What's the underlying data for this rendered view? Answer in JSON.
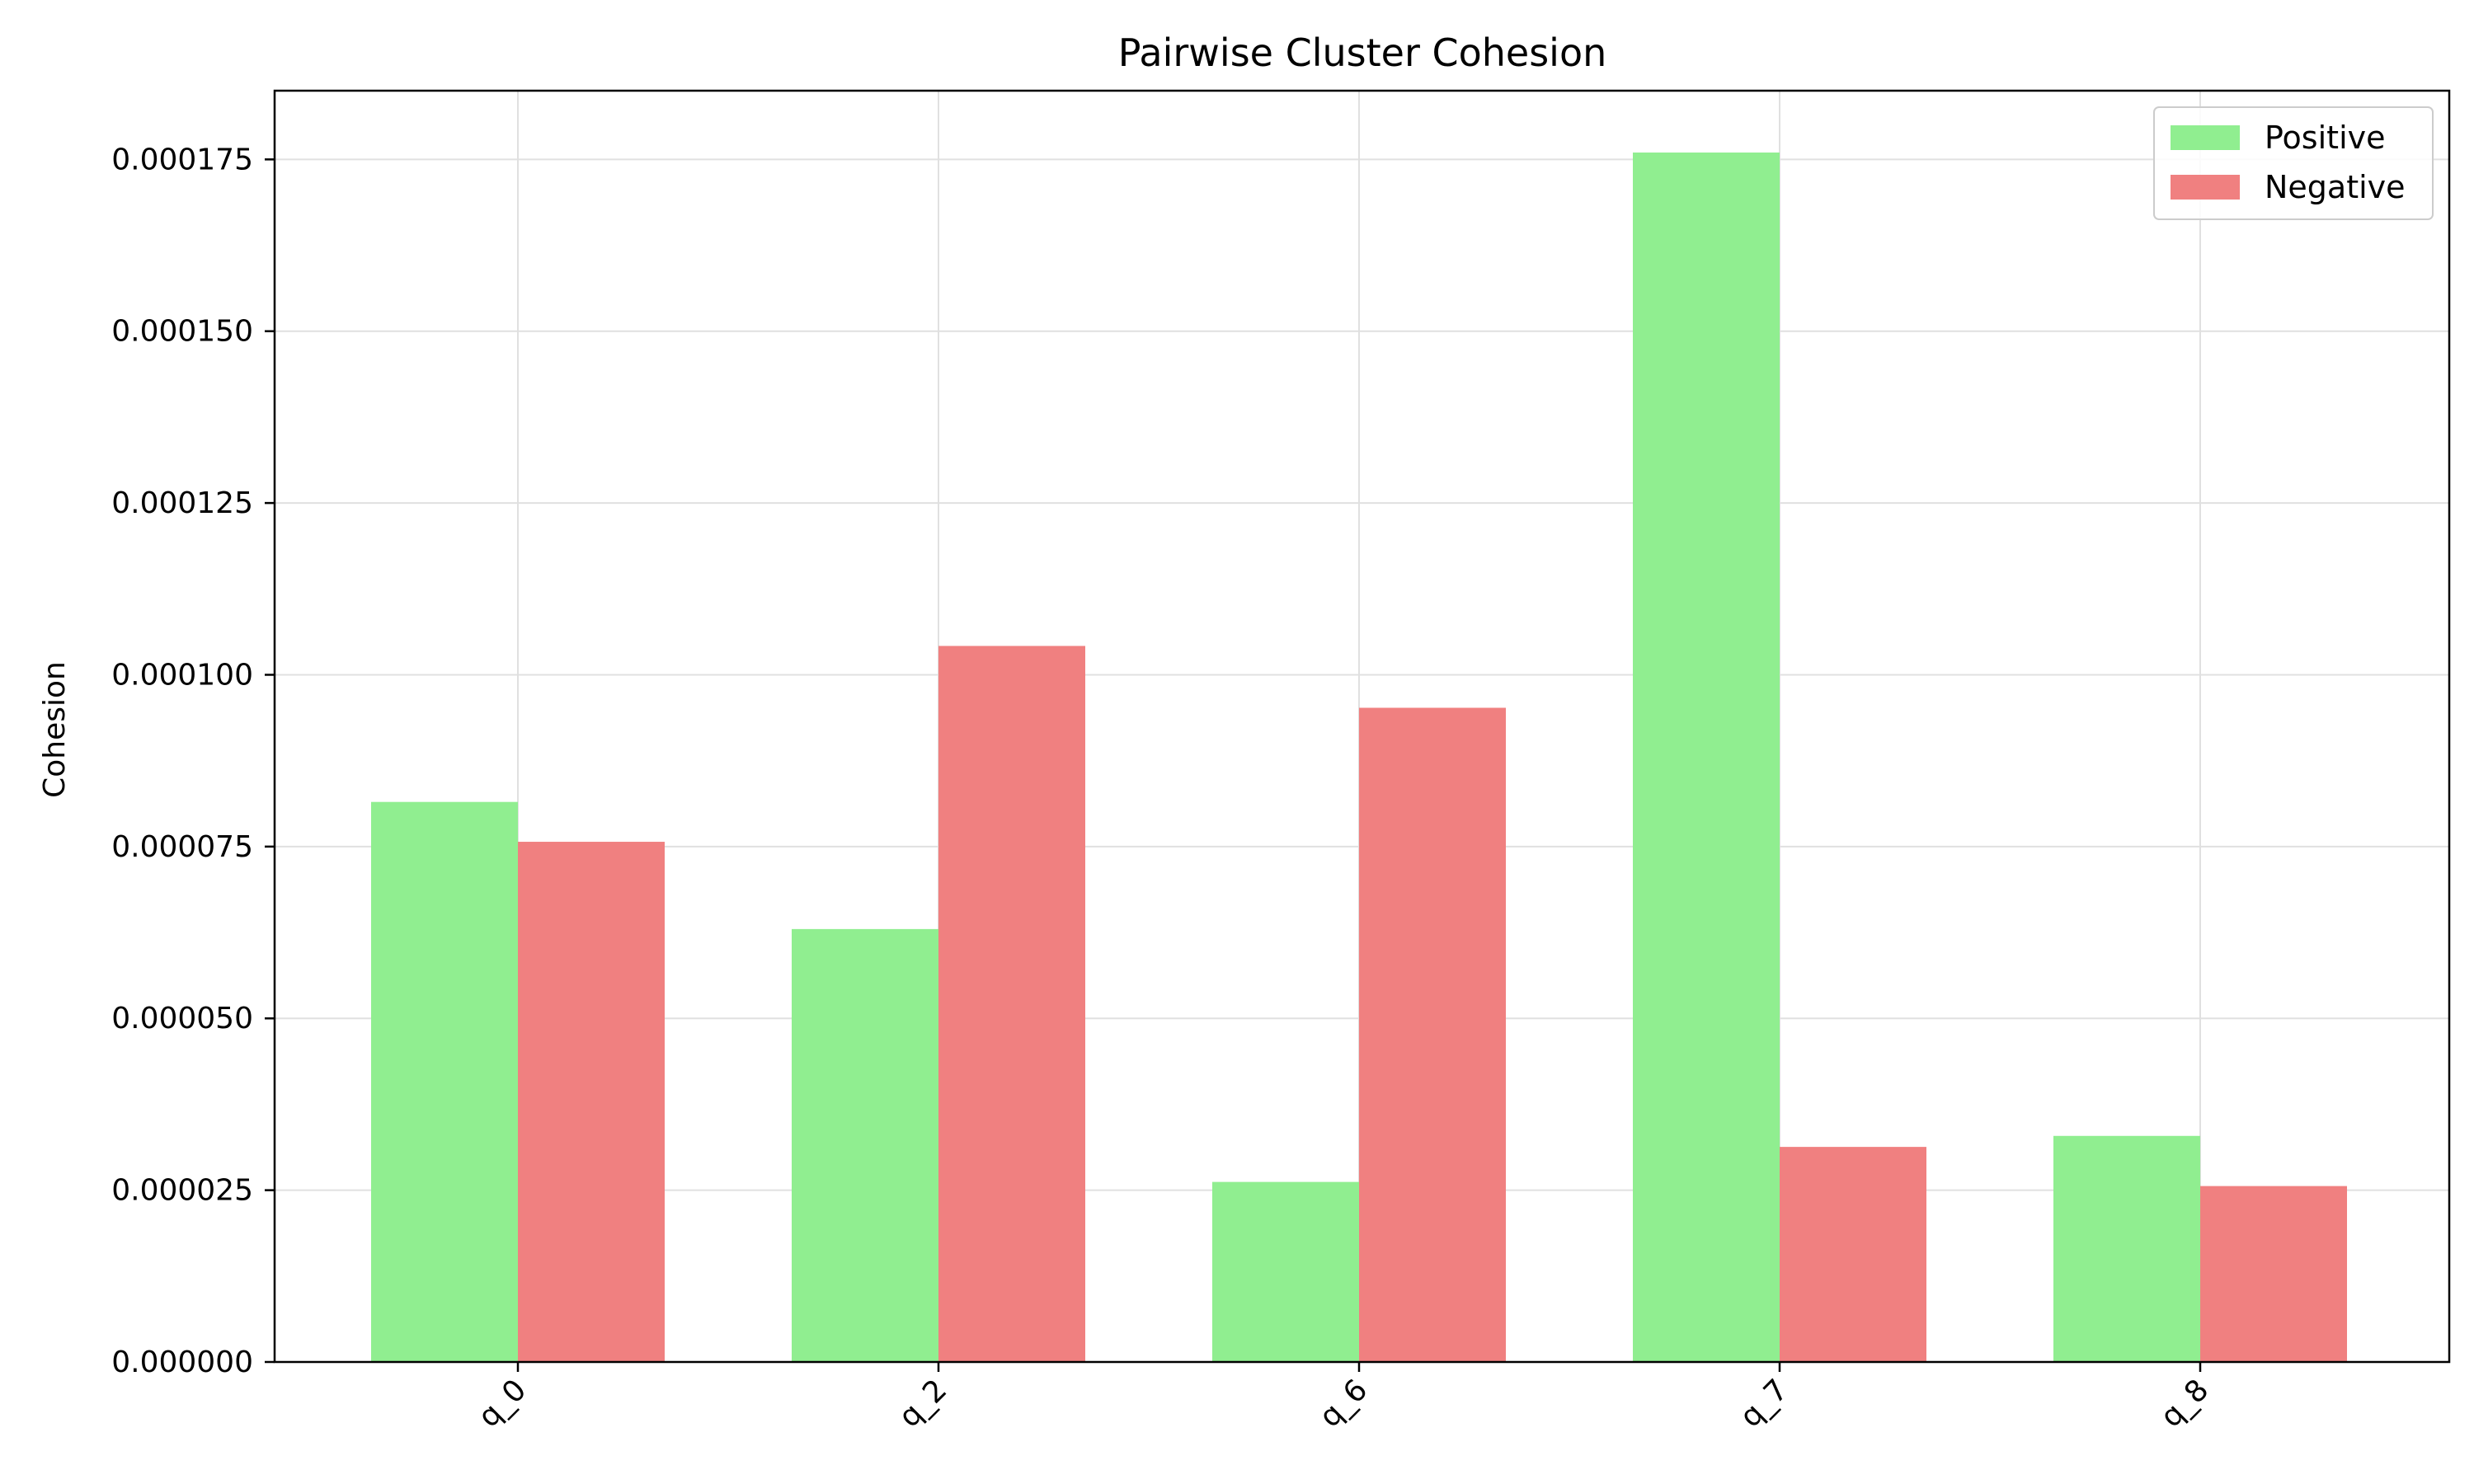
{
  "chart_data": {
    "type": "bar",
    "title": "Pairwise Cluster Cohesion",
    "xlabel": "",
    "ylabel": "Cohesion",
    "categories": [
      "q_0",
      "q_2",
      "q_6",
      "q_7",
      "q_8"
    ],
    "series": [
      {
        "name": "Positive",
        "color": "#90ee90",
        "values": [
          8.15e-05,
          6.3e-05,
          2.62e-05,
          0.000176,
          3.29e-05
        ]
      },
      {
        "name": "Negative",
        "color": "#f08080",
        "values": [
          7.57e-05,
          0.0001042,
          9.52e-05,
          3.13e-05,
          2.56e-05
        ]
      }
    ],
    "ylim": [
      0,
      0.000185
    ],
    "yticks": [
      "0.000000",
      "0.000025",
      "0.000050",
      "0.000075",
      "0.000100",
      "0.000125",
      "0.000150",
      "0.000175"
    ],
    "ytick_values": [
      0,
      2.5e-05,
      5e-05,
      7.5e-05,
      0.0001,
      0.000125,
      0.00015,
      0.000175
    ],
    "xtick_rotation": 45,
    "grid": true,
    "legend_position": "top-right"
  }
}
